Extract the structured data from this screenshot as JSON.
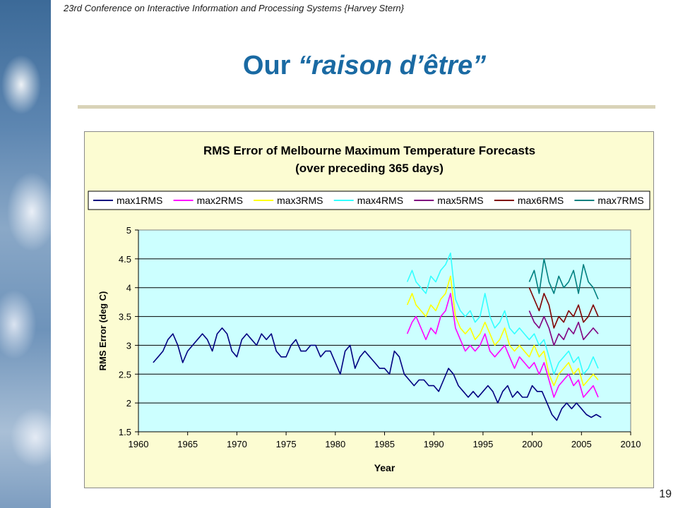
{
  "header": {
    "text": "23rd Conference on Interactive Information and Processing Systems {Harvey Stern}"
  },
  "slide": {
    "title_prefix": "Our ",
    "title_quote": "“raison d’être”",
    "page_number": "19"
  },
  "colors": {
    "title": "#1a6aa3",
    "plot_background": "#ccffff",
    "chart_background": "#fcfcd2"
  },
  "chart_data": {
    "type": "line",
    "title": "RMS Error of Melbourne Maximum Temperature Forecasts",
    "subtitle": "(over preceding 365 days)",
    "xlabel": "Year",
    "ylabel": "RMS Error (deg C)",
    "xlim": [
      1960,
      2010
    ],
    "ylim": [
      1.5,
      5
    ],
    "xticks": [
      "1960",
      "1965",
      "1970",
      "1975",
      "1980",
      "1985",
      "1990",
      "1995",
      "2000",
      "2005",
      "2010"
    ],
    "yticks": [
      "1.5",
      "2",
      "2.5",
      "3",
      "3.5",
      "4",
      "4.5",
      "5"
    ],
    "grid": "horizontal",
    "legend_position": "top",
    "series": [
      {
        "name": "max1RMS",
        "color": "#000080",
        "x": [
          1961.5,
          1962,
          1962.5,
          1963,
          1963.5,
          1964,
          1964.5,
          1965,
          1965.5,
          1966,
          1966.5,
          1967,
          1967.5,
          1968,
          1968.5,
          1969,
          1969.5,
          1970,
          1970.5,
          1971,
          1971.5,
          1972,
          1972.5,
          1973,
          1973.5,
          1974,
          1974.5,
          1975,
          1975.5,
          1976,
          1976.5,
          1977,
          1977.5,
          1978,
          1978.5,
          1979,
          1979.5,
          1980,
          1980.5,
          1981,
          1981.5,
          1982,
          1982.5,
          1983,
          1983.5,
          1984,
          1984.5,
          1985,
          1985.5,
          1986,
          1986.5,
          1987,
          1987.5,
          1988,
          1988.5,
          1989,
          1989.5,
          1990,
          1990.5,
          1991,
          1991.5,
          1992,
          1992.5,
          1993,
          1993.5,
          1994,
          1994.5,
          1995,
          1995.5,
          1996,
          1996.5,
          1997,
          1997.5,
          1998,
          1998.5,
          1999,
          1999.5,
          2000,
          2000.5,
          2001,
          2001.5,
          2002,
          2002.5,
          2003,
          2003.5,
          2004,
          2004.5,
          2005,
          2005.5,
          2006,
          2006.5,
          2007
        ],
        "y": [
          2.7,
          2.8,
          2.9,
          3.1,
          3.2,
          3.0,
          2.7,
          2.9,
          3.0,
          3.1,
          3.2,
          3.1,
          2.9,
          3.2,
          3.3,
          3.2,
          2.9,
          2.8,
          3.1,
          3.2,
          3.1,
          3.0,
          3.2,
          3.1,
          3.2,
          2.9,
          2.8,
          2.8,
          3.0,
          3.1,
          2.9,
          2.9,
          3.0,
          3.0,
          2.8,
          2.9,
          2.9,
          2.7,
          2.5,
          2.9,
          3.0,
          2.6,
          2.8,
          2.9,
          2.8,
          2.7,
          2.6,
          2.6,
          2.5,
          2.9,
          2.8,
          2.5,
          2.4,
          2.3,
          2.4,
          2.4,
          2.3,
          2.3,
          2.2,
          2.4,
          2.6,
          2.5,
          2.3,
          2.2,
          2.1,
          2.2,
          2.1,
          2.2,
          2.3,
          2.2,
          2.0,
          2.2,
          2.3,
          2.1,
          2.2,
          2.1,
          2.1,
          2.3,
          2.2,
          2.2,
          2.0,
          1.8,
          1.7,
          1.9,
          2.0,
          1.9,
          2.0,
          1.9,
          1.8,
          1.75,
          1.8,
          1.75
        ]
      },
      {
        "name": "max2RMS",
        "color": "#ff00ff",
        "x": [
          1987.3,
          1987.8,
          1988.2,
          1988.7,
          1989.2,
          1989.7,
          1990.2,
          1990.7,
          1991.2,
          1991.7,
          1992.2,
          1992.7,
          1993.2,
          1993.7,
          1994.2,
          1994.7,
          1995.2,
          1995.7,
          1996.2,
          1996.7,
          1997.2,
          1997.7,
          1998.2,
          1998.7,
          1999.2,
          1999.7,
          2000.2,
          2000.7,
          2001.2,
          2001.7,
          2002.2,
          2002.7,
          2003.2,
          2003.7,
          2004.2,
          2004.7,
          2005.2,
          2005.7,
          2006.2,
          2006.7
        ],
        "y": [
          3.2,
          3.4,
          3.5,
          3.3,
          3.1,
          3.3,
          3.2,
          3.5,
          3.6,
          3.9,
          3.3,
          3.1,
          2.9,
          3.0,
          2.9,
          3.0,
          3.2,
          2.9,
          2.8,
          2.9,
          3.0,
          2.8,
          2.6,
          2.8,
          2.7,
          2.6,
          2.7,
          2.5,
          2.7,
          2.4,
          2.1,
          2.3,
          2.4,
          2.5,
          2.3,
          2.4,
          2.1,
          2.2,
          2.3,
          2.1
        ]
      },
      {
        "name": "max3RMS",
        "color": "#ffff00",
        "x": [
          1987.3,
          1987.8,
          1988.2,
          1988.7,
          1989.2,
          1989.7,
          1990.2,
          1990.7,
          1991.2,
          1991.7,
          1992.2,
          1992.7,
          1993.2,
          1993.7,
          1994.2,
          1994.7,
          1995.2,
          1995.7,
          1996.2,
          1996.7,
          1997.2,
          1997.7,
          1998.2,
          1998.7,
          1999.2,
          1999.7,
          2000.2,
          2000.7,
          2001.2,
          2001.7,
          2002.2,
          2002.7,
          2003.2,
          2003.7,
          2004.2,
          2004.7,
          2005.2,
          2005.7,
          2006.2,
          2006.7
        ],
        "y": [
          3.7,
          3.9,
          3.7,
          3.6,
          3.5,
          3.7,
          3.6,
          3.8,
          3.9,
          4.2,
          3.5,
          3.3,
          3.2,
          3.3,
          3.1,
          3.2,
          3.4,
          3.2,
          3.0,
          3.1,
          3.3,
          3.0,
          2.9,
          3.0,
          2.9,
          2.8,
          3.0,
          2.8,
          2.9,
          2.5,
          2.3,
          2.5,
          2.6,
          2.7,
          2.5,
          2.6,
          2.3,
          2.4,
          2.5,
          2.4
        ]
      },
      {
        "name": "max4RMS",
        "color": "#33ffff",
        "x": [
          1987.3,
          1987.8,
          1988.2,
          1988.7,
          1989.2,
          1989.7,
          1990.2,
          1990.7,
          1991.2,
          1991.7,
          1992.2,
          1992.7,
          1993.2,
          1993.7,
          1994.2,
          1994.7,
          1995.2,
          1995.7,
          1996.2,
          1996.7,
          1997.2,
          1997.7,
          1998.2,
          1998.7,
          1999.2,
          1999.7,
          2000.2,
          2000.7,
          2001.2,
          2001.7,
          2002.2,
          2002.7,
          2003.2,
          2003.7,
          2004.2,
          2004.7,
          2005.2,
          2005.7,
          2006.2,
          2006.7
        ],
        "y": [
          4.1,
          4.3,
          4.1,
          4.0,
          3.9,
          4.2,
          4.1,
          4.3,
          4.4,
          4.6,
          3.8,
          3.6,
          3.5,
          3.6,
          3.4,
          3.5,
          3.9,
          3.5,
          3.3,
          3.4,
          3.6,
          3.3,
          3.2,
          3.3,
          3.2,
          3.1,
          3.2,
          3.0,
          3.1,
          2.8,
          2.5,
          2.7,
          2.8,
          2.9,
          2.7,
          2.8,
          2.5,
          2.6,
          2.8,
          2.6
        ]
      },
      {
        "name": "max5RMS",
        "color": "#800080",
        "x": [
          1999.7,
          2000.2,
          2000.7,
          2001.2,
          2001.7,
          2002.2,
          2002.7,
          2003.2,
          2003.7,
          2004.2,
          2004.7,
          2005.2,
          2005.7,
          2006.2,
          2006.7
        ],
        "y": [
          3.6,
          3.4,
          3.3,
          3.5,
          3.3,
          3.0,
          3.2,
          3.1,
          3.3,
          3.2,
          3.4,
          3.1,
          3.2,
          3.3,
          3.2
        ]
      },
      {
        "name": "max6RMS",
        "color": "#800000",
        "x": [
          1999.7,
          2000.2,
          2000.7,
          2001.2,
          2001.7,
          2002.2,
          2002.7,
          2003.2,
          2003.7,
          2004.2,
          2004.7,
          2005.2,
          2005.7,
          2006.2,
          2006.7
        ],
        "y": [
          4.0,
          3.8,
          3.6,
          3.9,
          3.7,
          3.3,
          3.5,
          3.4,
          3.6,
          3.5,
          3.7,
          3.4,
          3.5,
          3.7,
          3.5
        ]
      },
      {
        "name": "max7RMS",
        "color": "#008080",
        "x": [
          1999.7,
          2000.2,
          2000.7,
          2001.2,
          2001.7,
          2002.2,
          2002.7,
          2003.2,
          2003.7,
          2004.2,
          2004.7,
          2005.2,
          2005.7,
          2006.2,
          2006.7
        ],
        "y": [
          4.1,
          4.3,
          3.9,
          4.5,
          4.1,
          3.9,
          4.2,
          4.0,
          4.1,
          4.3,
          3.9,
          4.4,
          4.1,
          4.0,
          3.8
        ]
      }
    ]
  }
}
